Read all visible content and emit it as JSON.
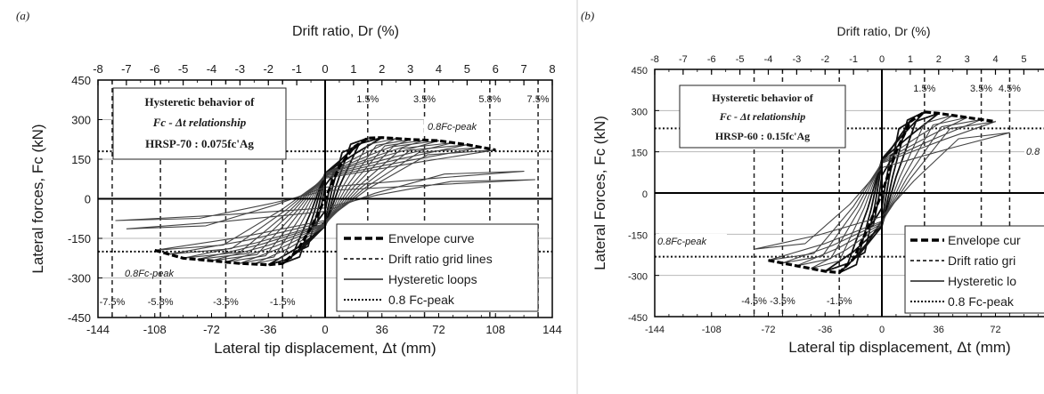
{
  "chart_data": [
    {
      "type": "line",
      "panel_label": "(a)",
      "top_axis_title": "Drift ratio, Dr (%)",
      "top_axis_ticks": [
        -8,
        -7,
        -6,
        -5,
        -4,
        -3,
        -2,
        -1,
        0,
        1,
        2,
        3,
        4,
        5,
        6,
        7,
        8
      ],
      "xlabel": "Lateral tip displacement, Δt (mm)",
      "ylabel": "Lateral forces, Fc (kN)",
      "x_ticks": [
        -144,
        -108,
        -72,
        -36,
        0,
        36,
        72,
        108,
        144
      ],
      "y_ticks": [
        -450,
        -300,
        -150,
        0,
        150,
        300,
        450
      ],
      "xlim": [
        -144,
        144
      ],
      "ylim": [
        -450,
        450
      ],
      "annotation_box": [
        "Hysteretic behavior of",
        "Fc - Δt relationship",
        "HRSP-70 : 0.075fc'Ag"
      ],
      "drift_grid_labels_top": [
        "1.5%",
        "3.5%",
        "5.8%",
        "7.5%"
      ],
      "drift_grid_labels_bottom": [
        "-7.5%",
        "-5.8%",
        "-3.5%",
        "-1.5%"
      ],
      "drift_grid_x": [
        -135,
        -104.4,
        -63,
        -27,
        27,
        63,
        104.4,
        135
      ],
      "peak_line_pos_label": "0.8Fc-peak",
      "peak_line_neg_label": "0.8Fc-peak",
      "peak_line_y": [
        180,
        -200
      ],
      "legend": [
        "Envelope curve",
        "Drift ratio grid lines",
        "Hysteretic loops",
        "0.8 Fc-peak"
      ],
      "legend_position": "bottom-right",
      "envelope_x": [
        -108,
        -90,
        -72,
        -54,
        -36,
        -27,
        -18,
        -9,
        0,
        9,
        18,
        27,
        36,
        54,
        72,
        90,
        108
      ],
      "envelope_y": [
        -195,
        -225,
        -235,
        -245,
        -250,
        -245,
        -200,
        -110,
        0,
        120,
        195,
        230,
        232,
        225,
        220,
        205,
        185
      ],
      "series": [
        {
          "name": "Hysteretic loops",
          "amplitudes": [
            9,
            18,
            27,
            36,
            45,
            54,
            63,
            72,
            81,
            90,
            99,
            108,
            126,
            133
          ]
        }
      ]
    },
    {
      "type": "line",
      "panel_label": "(b)",
      "top_axis_title": "Drift ratio, Dr (%)",
      "top_axis_ticks": [
        -8,
        -7,
        -6,
        -5,
        -4,
        -3,
        -2,
        -1,
        0,
        1,
        2,
        3,
        4,
        5
      ],
      "xlabel": "Lateral tip displacement, Δt (mm)",
      "ylabel": "Lateral Forces, Fc (kN)",
      "x_ticks": [
        -144,
        -108,
        -72,
        -36,
        0,
        36,
        72
      ],
      "y_ticks": [
        -450,
        -300,
        -150,
        0,
        150,
        300,
        450
      ],
      "xlim": [
        -144,
        144
      ],
      "ylim": [
        -450,
        450
      ],
      "annotation_box": [
        "Hysteretic behavior of",
        "Fc - Δt relationship",
        "HRSP-60 : 0.15fc'Ag"
      ],
      "drift_grid_labels_top": [
        "1.5%",
        "3.5%",
        "4.5%"
      ],
      "drift_grid_labels_bottom": [
        "-4.5%",
        "-3.5%",
        "-1.5%"
      ],
      "drift_grid_x": [
        -81,
        -63,
        -27,
        27,
        63,
        81
      ],
      "peak_line_pos_label": "0.8",
      "peak_line_neg_label": "0.8Fc-peak",
      "peak_line_y": [
        235,
        -232
      ],
      "legend": [
        "Envelope cur",
        "Drift ratio gri",
        "Hysteretic lo",
        "0.8 Fc-peak"
      ],
      "legend_position": "bottom-right",
      "envelope_x": [
        -72,
        -54,
        -36,
        -27,
        -18,
        -9,
        0,
        9,
        18,
        27,
        36,
        54,
        72
      ],
      "envelope_y": [
        -245,
        -265,
        -285,
        -290,
        -240,
        -130,
        0,
        150,
        260,
        295,
        290,
        275,
        260
      ],
      "series": [
        {
          "name": "Hysteretic loops",
          "amplitudes": [
            9,
            18,
            27,
            36,
            45,
            54,
            63,
            72,
            81
          ]
        }
      ]
    }
  ]
}
